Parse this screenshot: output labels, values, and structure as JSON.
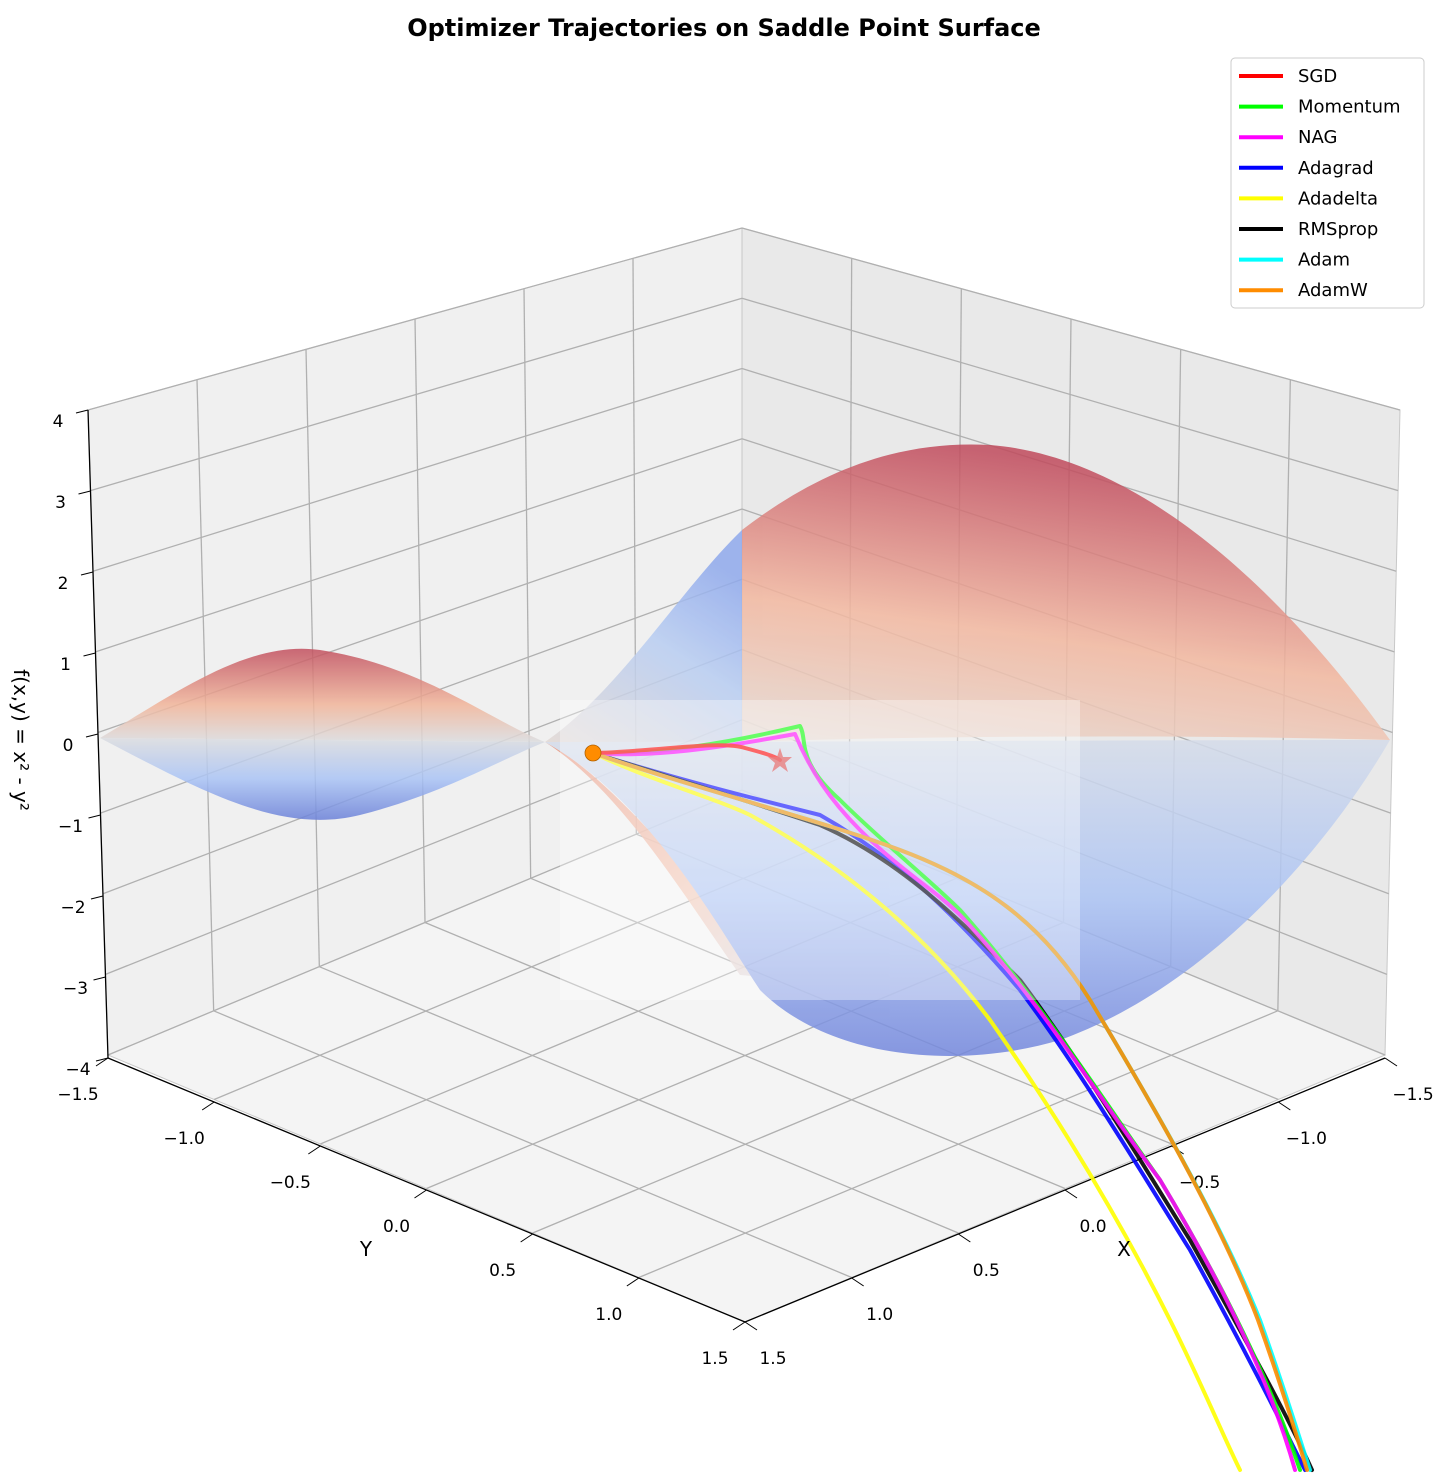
{
  "chart_data": {
    "type": "surface3d",
    "title": "Optimizer Trajectories on Saddle Point Surface",
    "function": "f(x,y) = x^2 - y^2",
    "xlabel": "X",
    "ylabel": "Y",
    "zlabel": "f(x,y) = x² - y²",
    "xlim": [
      -1.5,
      1.5
    ],
    "ylim": [
      -1.5,
      1.5
    ],
    "zlim": [
      -4,
      4
    ],
    "x_ticks": [
      "−1.5",
      "−1.0",
      "−0.5",
      "0.0",
      "0.5",
      "1.0",
      "1.5"
    ],
    "y_ticks": [
      "−1.5",
      "−1.0",
      "−0.5",
      "0.0",
      "0.5",
      "1.0",
      "1.5"
    ],
    "z_ticks": [
      "4",
      "3",
      "2",
      "1",
      "0",
      "−1",
      "−2",
      "−3",
      "−4"
    ],
    "colormap": "coolwarm",
    "grid": true,
    "legend_position": "top-right",
    "series": [
      {
        "name": "SGD",
        "color": "#ff0000"
      },
      {
        "name": "Momentum",
        "color": "#00ff00"
      },
      {
        "name": "NAG",
        "color": "#ff00ff"
      },
      {
        "name": "Adagrad",
        "color": "#0000ff"
      },
      {
        "name": "Adadelta",
        "color": "#ffff00"
      },
      {
        "name": "RMSprop",
        "color": "#000000"
      },
      {
        "name": "Adam",
        "color": "#00ffff"
      },
      {
        "name": "AdamW",
        "color": "#ff8c00"
      }
    ],
    "start_marker_color": "#ff8c00"
  }
}
